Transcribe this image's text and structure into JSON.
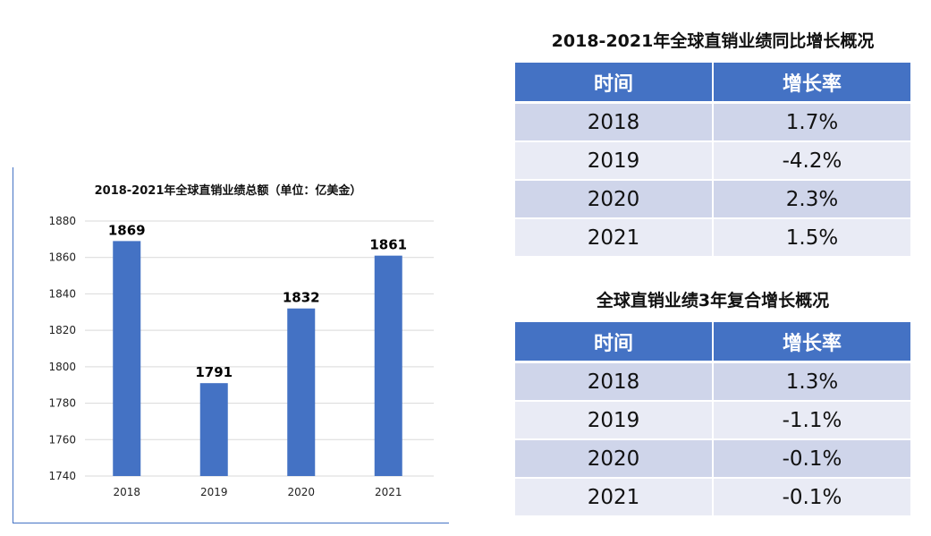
{
  "chart_data": {
    "type": "bar",
    "title": "2018-2021年全球直销业绩总额（单位：亿美金）",
    "categories": [
      "2018",
      "2019",
      "2020",
      "2021"
    ],
    "values": [
      1869,
      1791,
      1832,
      1861
    ],
    "data_labels": [
      "1869",
      "1791",
      "1832",
      "1861"
    ],
    "ylim": [
      1740,
      1880
    ],
    "y_ticks": [
      "1740",
      "1760",
      "1780",
      "1800",
      "1820",
      "1840",
      "1860",
      "1880"
    ],
    "grid": true,
    "color": "#4472c4"
  },
  "yoy_table": {
    "title": "2018-2021年全球直销业绩同比增长概况",
    "headers": [
      "时间",
      "增长率"
    ],
    "rows": [
      {
        "year": "2018",
        "rate": "1.7%"
      },
      {
        "year": "2019",
        "rate": "-4.2%"
      },
      {
        "year": "2020",
        "rate": "2.3%"
      },
      {
        "year": "2021",
        "rate": "1.5%"
      }
    ]
  },
  "cagr_table": {
    "title": "全球直销业绩3年复合增长概况",
    "headers": [
      "时间",
      "增长率"
    ],
    "rows": [
      {
        "year": "2018",
        "rate": "1.3%"
      },
      {
        "year": "2019",
        "rate": "-1.1%"
      },
      {
        "year": "2020",
        "rate": "-0.1%"
      },
      {
        "year": "2021",
        "rate": "-0.1%"
      }
    ]
  },
  "colors": {
    "accent": "#4472c4",
    "row_dark": "#cfd5ea",
    "row_light": "#e9ebf5"
  }
}
